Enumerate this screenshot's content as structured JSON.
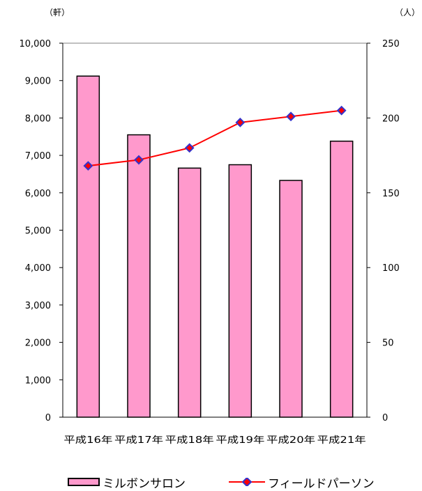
{
  "units": {
    "left": "（軒）",
    "right": "（人）"
  },
  "chart_data": {
    "type": "bar+line",
    "categories": [
      "平成16年",
      "平成17年",
      "平成18年",
      "平成19年",
      "平成20年",
      "平成21年"
    ],
    "series": [
      {
        "name": "ミルボンサロン",
        "type": "bar",
        "axis": "left",
        "color": "#ff99cc",
        "values": [
          9120,
          7550,
          6660,
          6750,
          6330,
          7380
        ]
      },
      {
        "name": "フィールドパーソン",
        "type": "line",
        "axis": "right",
        "color": "#ff0000",
        "marker_color": "#3333cc",
        "values": [
          168,
          172,
          180,
          197,
          201,
          205
        ]
      }
    ],
    "y_left": {
      "lim": [
        0,
        10000
      ],
      "ticks": [
        "0",
        "1,000",
        "2,000",
        "3,000",
        "4,000",
        "5,000",
        "6,000",
        "7,000",
        "8,000",
        "9,000",
        "10,000"
      ]
    },
    "y_right": {
      "lim": [
        0,
        250
      ],
      "ticks": [
        "0",
        "50",
        "100",
        "150",
        "200",
        "250"
      ]
    },
    "grid": false,
    "legend_position": "bottom"
  }
}
